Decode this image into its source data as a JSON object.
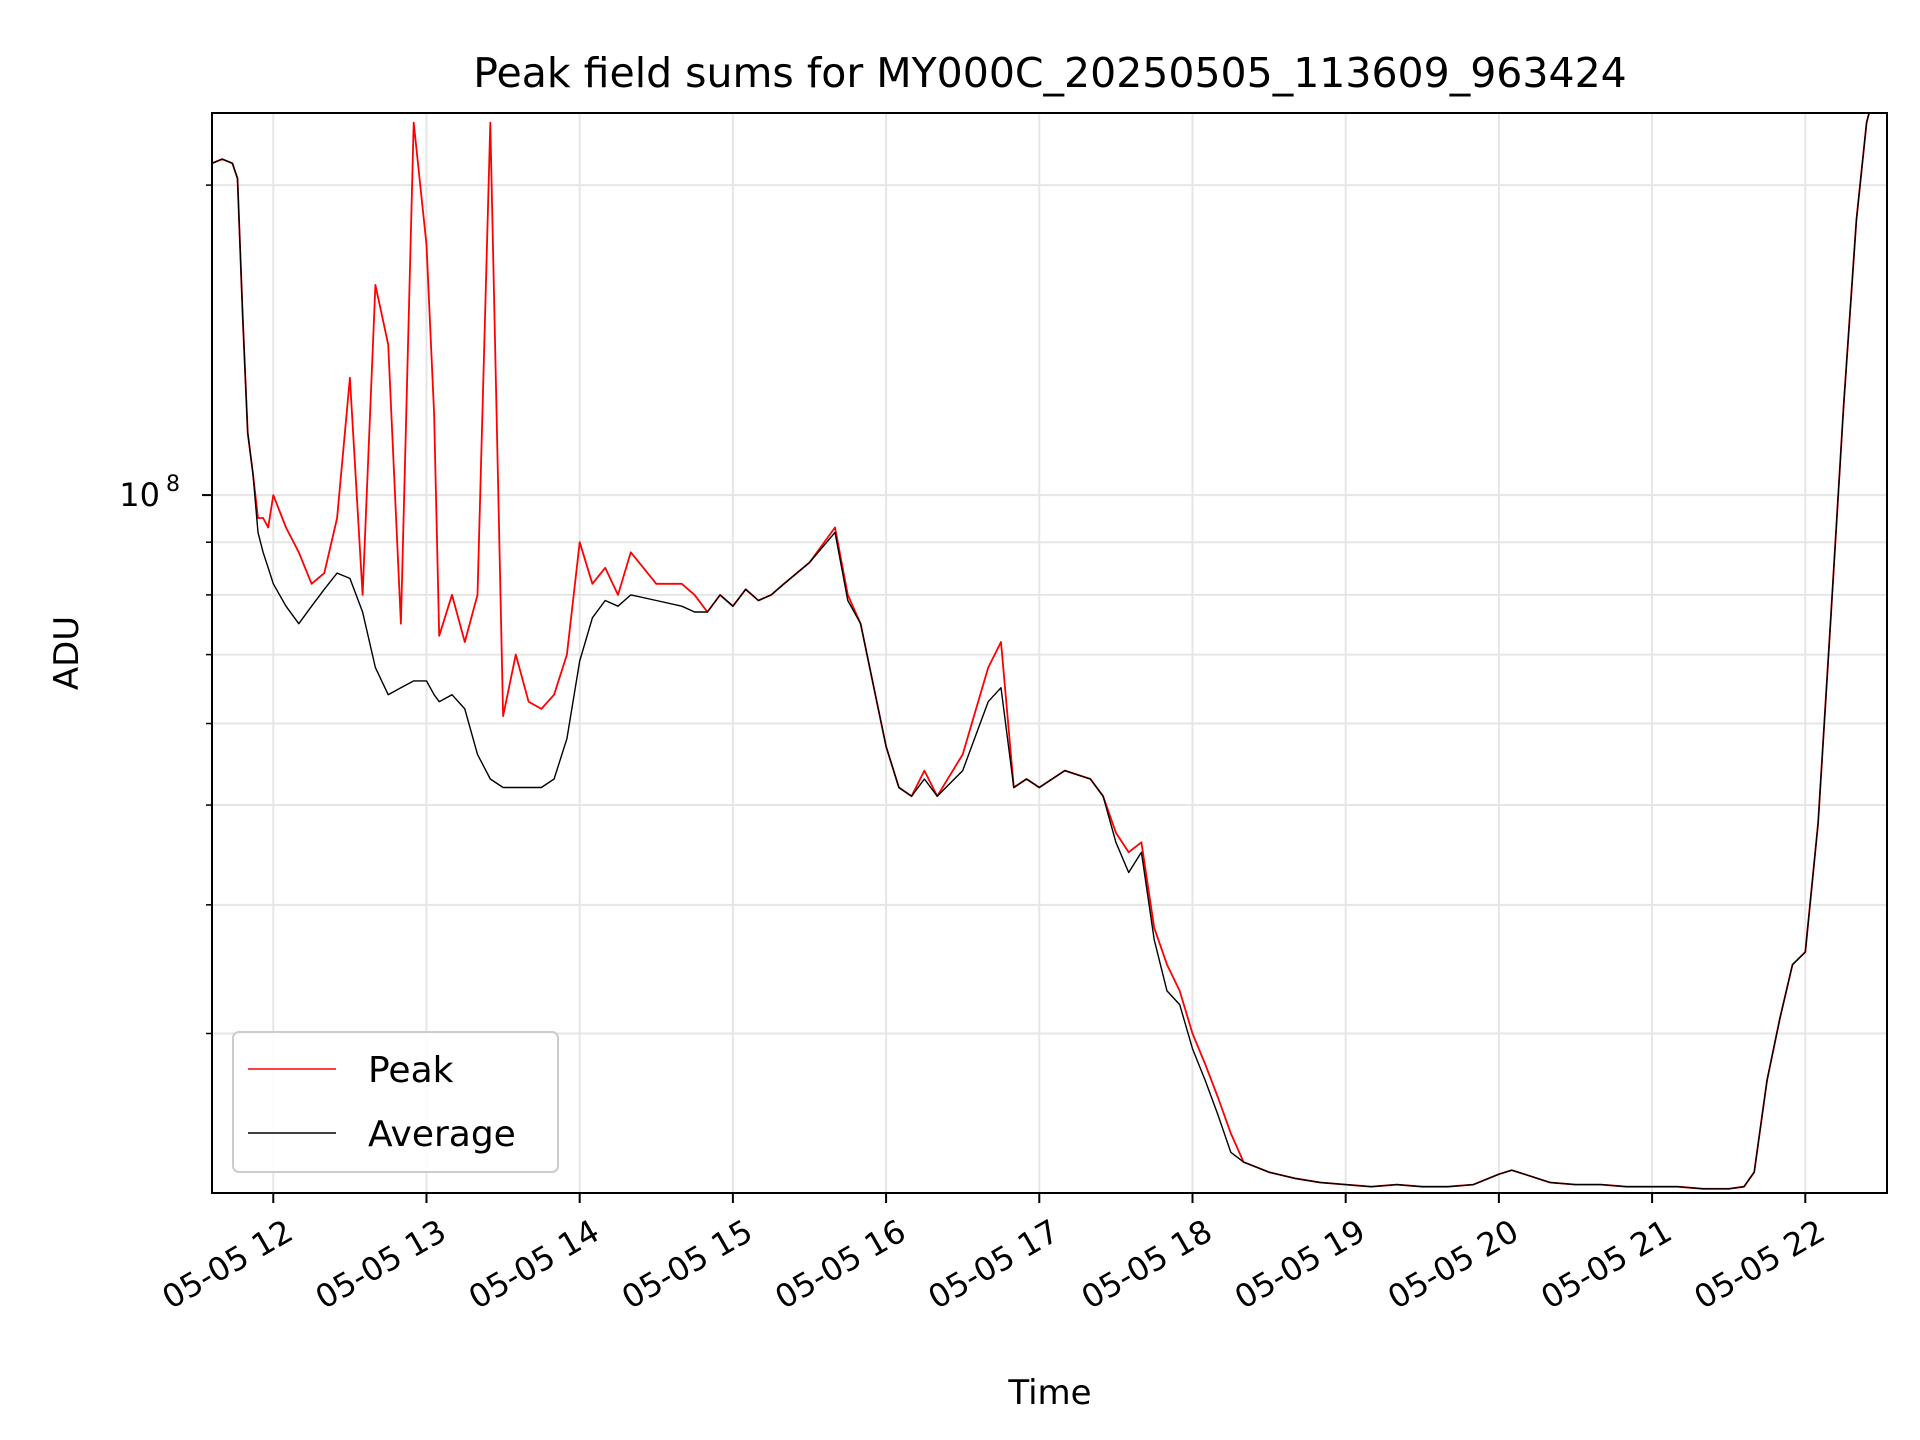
{
  "chart_data": {
    "type": "line",
    "title": "Peak field sums for MY000C_20250505_113609_963424",
    "xlabel": "Time",
    "ylabel": "ADU",
    "x_ticks": [
      "05-05 12",
      "05-05 13",
      "05-05 14",
      "05-05 15",
      "05-05 16",
      "05-05 17",
      "05-05 18",
      "05-05 19",
      "05-05 20",
      "05-05 21",
      "05-05 22"
    ],
    "y_ticks": [
      {
        "label_base": "10",
        "label_exp": "8",
        "value": 100000000
      }
    ],
    "yscale": "log",
    "xlim": [
      "2025-05-05 11:36",
      "2025-05-05 22:32"
    ],
    "ylim": [
      21000000,
      235000000
    ],
    "grid": true,
    "legend_position": "lower-left",
    "series": [
      {
        "name": "Peak",
        "color": "#ff0000",
        "x": [
          "11:36",
          "11:40",
          "11:44",
          "11:46",
          "11:48",
          "11:50",
          "11:52",
          "11:54",
          "11:56",
          "11:58",
          "12:00",
          "12:05",
          "12:10",
          "12:15",
          "12:20",
          "12:25",
          "12:30",
          "12:35",
          "12:40",
          "12:45",
          "12:50",
          "12:55",
          "13:00",
          "13:03",
          "13:05",
          "13:10",
          "13:15",
          "13:20",
          "13:25",
          "13:30",
          "13:35",
          "13:40",
          "13:45",
          "13:50",
          "13:55",
          "14:00",
          "14:05",
          "14:10",
          "14:15",
          "14:20",
          "14:30",
          "14:40",
          "14:45",
          "14:50",
          "14:55",
          "15:00",
          "15:05",
          "15:10",
          "15:15",
          "15:20",
          "15:30",
          "15:40",
          "15:45",
          "15:50",
          "16:00",
          "16:05",
          "16:10",
          "16:15",
          "16:20",
          "16:30",
          "16:40",
          "16:45",
          "16:50",
          "16:55",
          "17:00",
          "17:10",
          "17:20",
          "17:25",
          "17:30",
          "17:35",
          "17:40",
          "17:45",
          "17:50",
          "17:55",
          "18:00",
          "18:05",
          "18:10",
          "18:15",
          "18:20",
          "18:30",
          "18:40",
          "18:50",
          "19:00",
          "19:10",
          "19:20",
          "19:30",
          "19:40",
          "19:50",
          "20:00",
          "20:05",
          "20:10",
          "20:20",
          "20:30",
          "20:40",
          "20:50",
          "21:00",
          "21:10",
          "21:20",
          "21:30",
          "21:36",
          "21:40",
          "21:45",
          "21:50",
          "21:55",
          "22:00",
          "22:05",
          "22:10",
          "22:15",
          "22:20",
          "22:24",
          "22:25"
        ],
        "y": [
          210000000,
          212000000,
          210000000,
          203000000,
          150000000,
          115000000,
          105000000,
          95000000,
          95000000,
          93000000,
          100000000,
          93000000,
          88000000,
          82000000,
          84000000,
          95000000,
          130000000,
          80000000,
          160000000,
          140000000,
          75000000,
          230000000,
          175000000,
          120000000,
          73000000,
          80000000,
          72000000,
          80000000,
          230000000,
          61000000,
          70000000,
          63000000,
          62000000,
          64000000,
          70000000,
          90000000,
          82000000,
          85000000,
          80000000,
          88000000,
          82000000,
          82000000,
          80000000,
          77000000,
          80000000,
          78000000,
          81000000,
          79000000,
          80000000,
          82000000,
          86000000,
          93000000,
          80000000,
          75000000,
          57000000,
          52000000,
          51000000,
          54000000,
          51000000,
          56000000,
          68000000,
          72000000,
          52000000,
          53000000,
          52000000,
          54000000,
          53000000,
          51000000,
          47000000,
          45000000,
          46000000,
          38000000,
          35000000,
          33000000,
          30000000,
          28000000,
          26000000,
          24000000,
          22500000,
          22000000,
          21700000,
          21500000,
          21400000,
          21300000,
          21400000,
          21300000,
          21300000,
          21400000,
          21900000,
          22100000,
          21900000,
          21500000,
          21400000,
          21400000,
          21300000,
          21300000,
          21300000,
          21200000,
          21200000,
          21300000,
          22000000,
          27000000,
          31000000,
          35000000,
          36000000,
          48000000,
          76000000,
          122000000,
          185000000,
          230000000,
          235000000
        ]
      },
      {
        "name": "Average",
        "color": "#000000",
        "x": [
          "11:36",
          "11:40",
          "11:44",
          "11:46",
          "11:48",
          "11:50",
          "11:52",
          "11:54",
          "11:56",
          "11:58",
          "12:00",
          "12:05",
          "12:10",
          "12:15",
          "12:20",
          "12:25",
          "12:30",
          "12:35",
          "12:40",
          "12:45",
          "12:50",
          "12:55",
          "13:00",
          "13:03",
          "13:05",
          "13:10",
          "13:15",
          "13:20",
          "13:25",
          "13:30",
          "13:35",
          "13:40",
          "13:45",
          "13:50",
          "13:55",
          "14:00",
          "14:05",
          "14:10",
          "14:15",
          "14:20",
          "14:30",
          "14:40",
          "14:45",
          "14:50",
          "14:55",
          "15:00",
          "15:05",
          "15:10",
          "15:15",
          "15:20",
          "15:30",
          "15:40",
          "15:45",
          "15:50",
          "16:00",
          "16:05",
          "16:10",
          "16:15",
          "16:20",
          "16:30",
          "16:40",
          "16:45",
          "16:50",
          "16:55",
          "17:00",
          "17:10",
          "17:20",
          "17:25",
          "17:30",
          "17:35",
          "17:40",
          "17:45",
          "17:50",
          "17:55",
          "18:00",
          "18:05",
          "18:10",
          "18:15",
          "18:20",
          "18:30",
          "18:40",
          "18:50",
          "19:00",
          "19:10",
          "19:20",
          "19:30",
          "19:40",
          "19:50",
          "20:00",
          "20:05",
          "20:10",
          "20:20",
          "20:30",
          "20:40",
          "20:50",
          "21:00",
          "21:10",
          "21:20",
          "21:30",
          "21:36",
          "21:40",
          "21:45",
          "21:50",
          "21:55",
          "22:00",
          "22:05",
          "22:10",
          "22:15",
          "22:20",
          "22:24",
          "22:25"
        ],
        "y": [
          210000000,
          212000000,
          210000000,
          203000000,
          150000000,
          115000000,
          105000000,
          92000000,
          88000000,
          85000000,
          82000000,
          78000000,
          75000000,
          78000000,
          81000000,
          84000000,
          83000000,
          77000000,
          68000000,
          64000000,
          65000000,
          66000000,
          66000000,
          64000000,
          63000000,
          64000000,
          62000000,
          56000000,
          53000000,
          52000000,
          52000000,
          52000000,
          52000000,
          53000000,
          58000000,
          69000000,
          76000000,
          79000000,
          78000000,
          80000000,
          79000000,
          78000000,
          77000000,
          77000000,
          80000000,
          78000000,
          81000000,
          79000000,
          80000000,
          82000000,
          86000000,
          92000000,
          79000000,
          75000000,
          57000000,
          52000000,
          51000000,
          53000000,
          51000000,
          54000000,
          63000000,
          65000000,
          52000000,
          53000000,
          52000000,
          54000000,
          53000000,
          51000000,
          46000000,
          43000000,
          45000000,
          37000000,
          33000000,
          32000000,
          29000000,
          27000000,
          25000000,
          23000000,
          22500000,
          22000000,
          21700000,
          21500000,
          21400000,
          21300000,
          21400000,
          21300000,
          21300000,
          21400000,
          21900000,
          22100000,
          21900000,
          21500000,
          21400000,
          21400000,
          21300000,
          21300000,
          21300000,
          21200000,
          21200000,
          21300000,
          22000000,
          27000000,
          31000000,
          35000000,
          36000000,
          48000000,
          76000000,
          122000000,
          185000000,
          230000000,
          235000000
        ]
      }
    ]
  }
}
